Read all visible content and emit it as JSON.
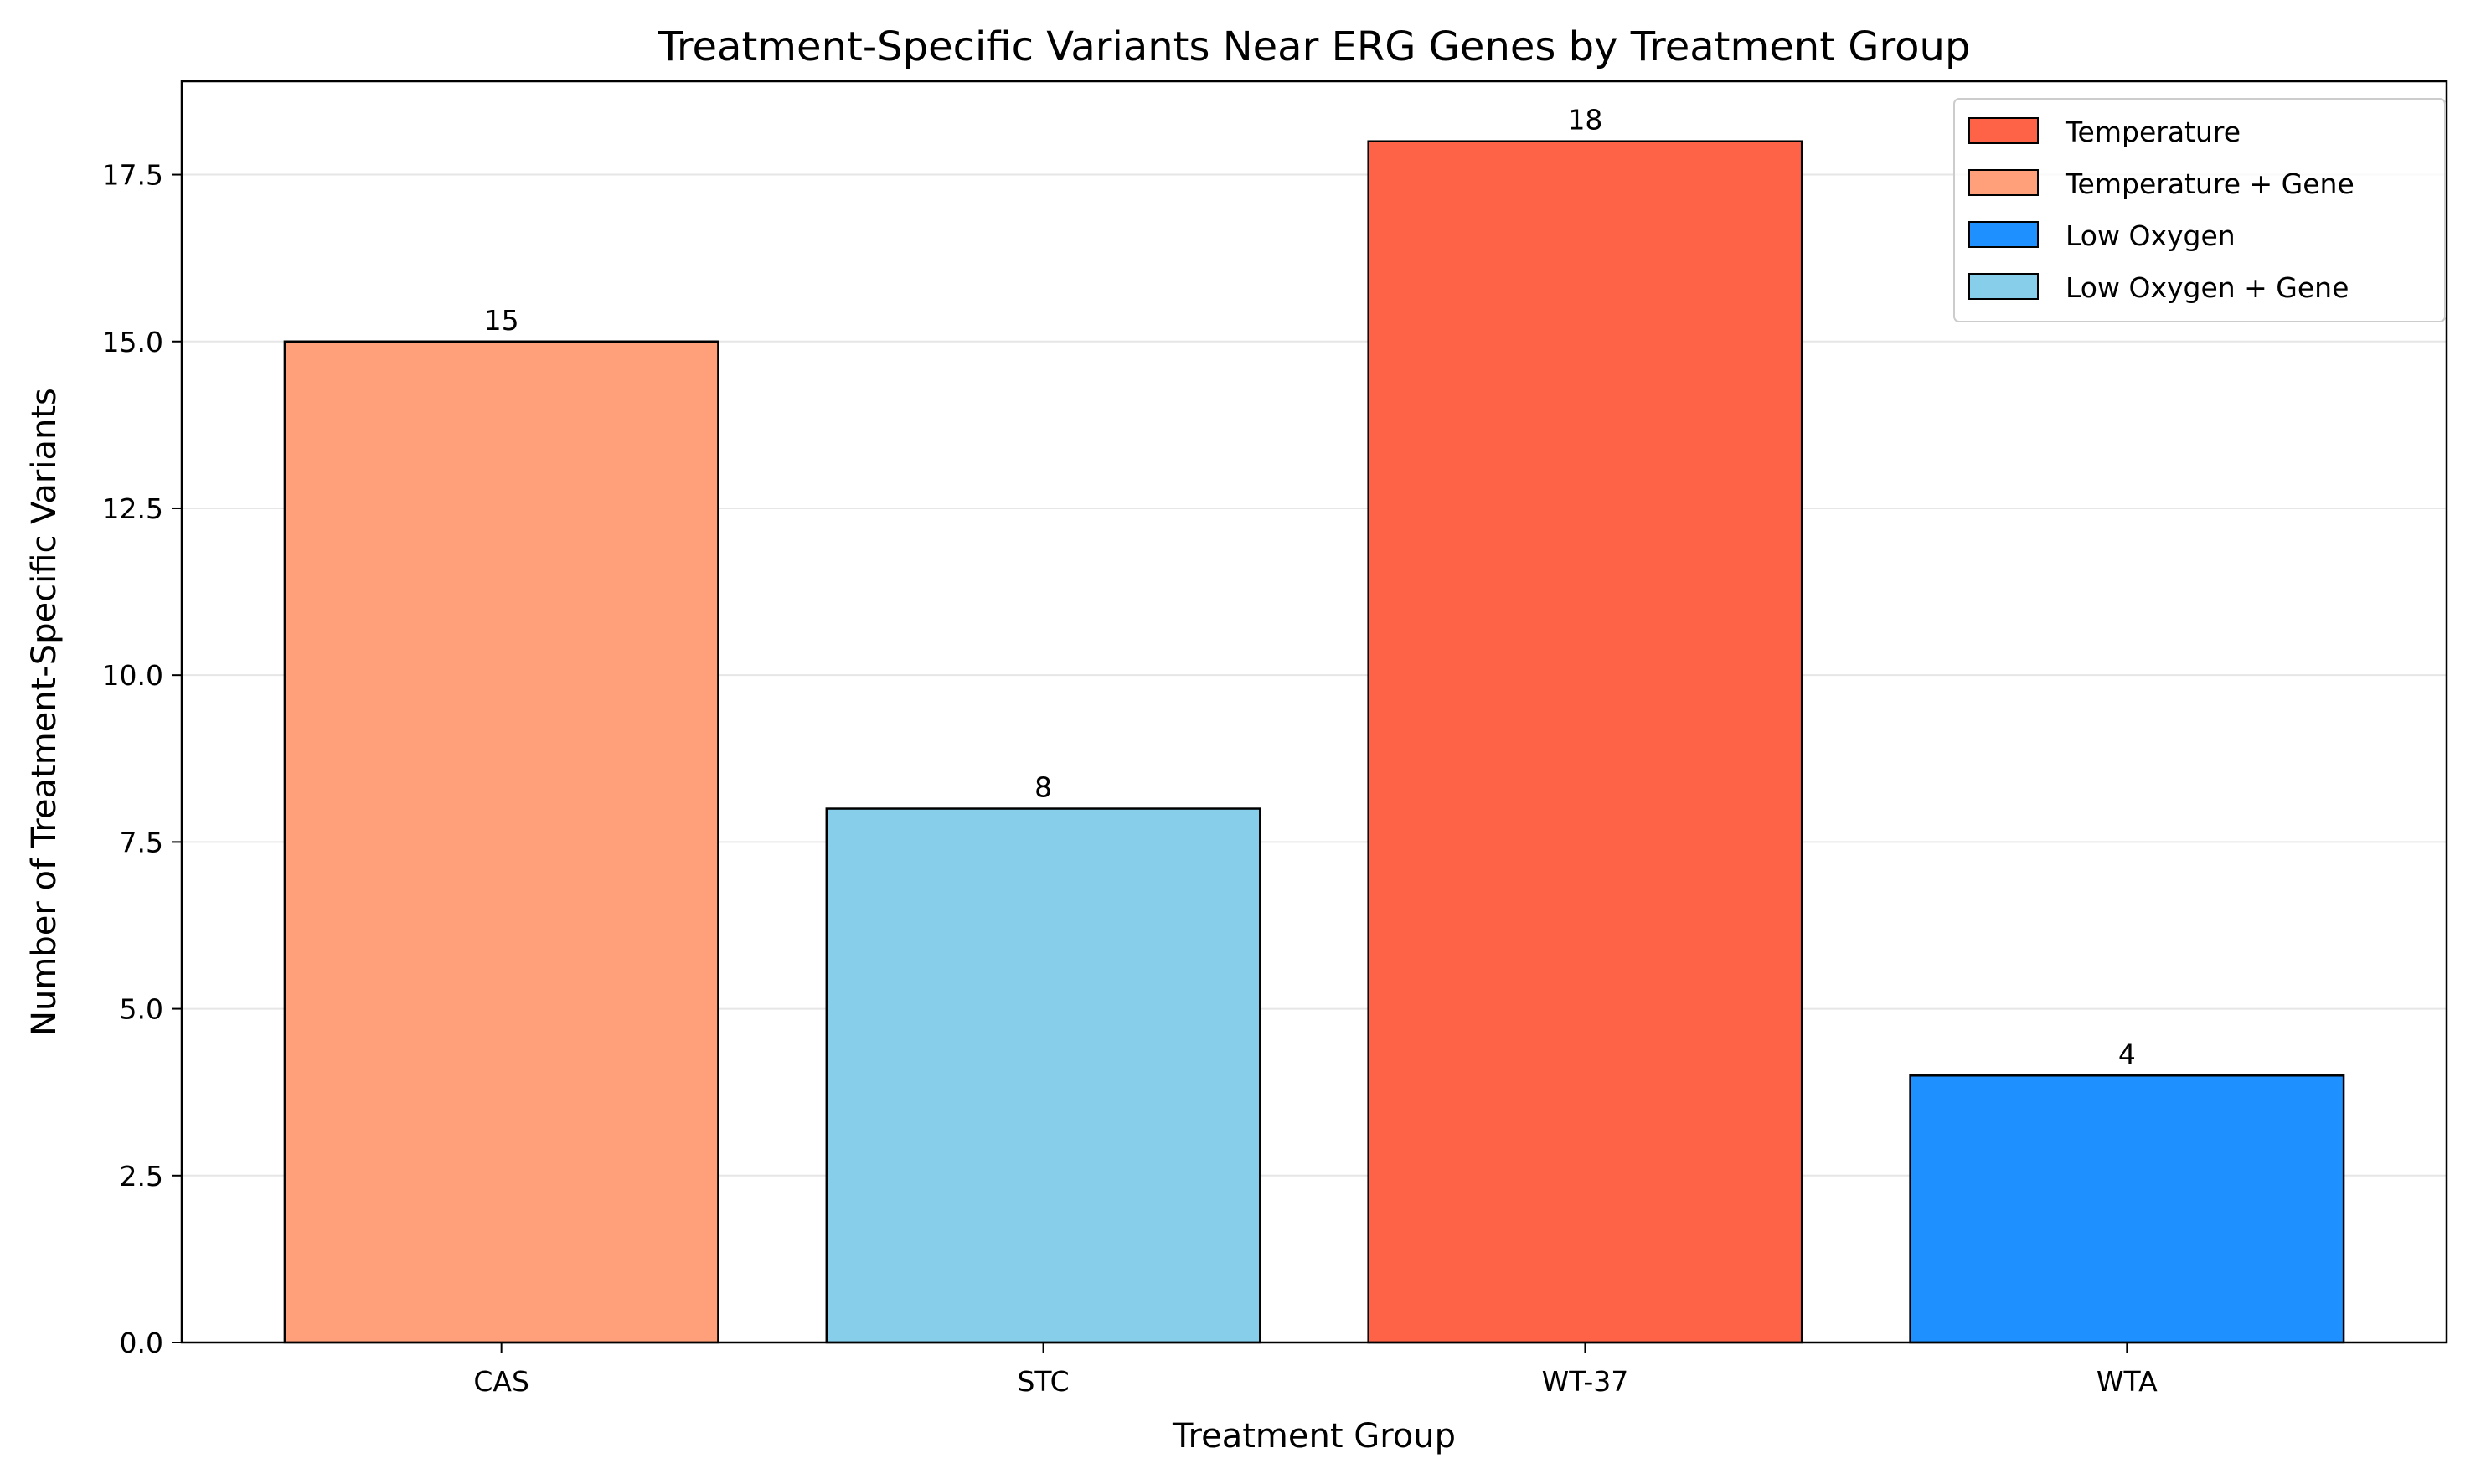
{
  "chart_data": {
    "type": "bar",
    "title": "Treatment-Specific Variants Near ERG Genes by Treatment Group",
    "xlabel": "Treatment Group",
    "ylabel": "Number of Treatment-Specific Variants",
    "categories": [
      "CAS",
      "STC",
      "WT-37",
      "WTA"
    ],
    "values": [
      15,
      8,
      18,
      4
    ],
    "value_labels": [
      "15",
      "8",
      "18",
      "4"
    ],
    "bar_groups": [
      "Temperature + Gene",
      "Low Oxygen + Gene",
      "Temperature",
      "Low Oxygen"
    ],
    "ylim": [
      0,
      18.9
    ],
    "yticks": [
      0,
      2.5,
      5,
      7.5,
      10,
      12.5,
      15,
      17.5
    ],
    "ytick_labels": [
      "0.0",
      "2.5",
      "5.0",
      "7.5",
      "10.0",
      "12.5",
      "15.0",
      "17.5"
    ],
    "grid": "horizontal",
    "legend_position": "top-right",
    "legend": [
      {
        "label": "Temperature",
        "color": "#ff6347"
      },
      {
        "label": "Temperature + Gene",
        "color": "#ffa07a"
      },
      {
        "label": "Low Oxygen",
        "color": "#1e90ff"
      },
      {
        "label": "Low Oxygen + Gene",
        "color": "#87ceeb"
      }
    ],
    "colors": {
      "Temperature": "#ff6347",
      "Temperature + Gene": "#ffa07a",
      "Low Oxygen": "#1e90ff",
      "Low Oxygen + Gene": "#87ceeb"
    }
  }
}
